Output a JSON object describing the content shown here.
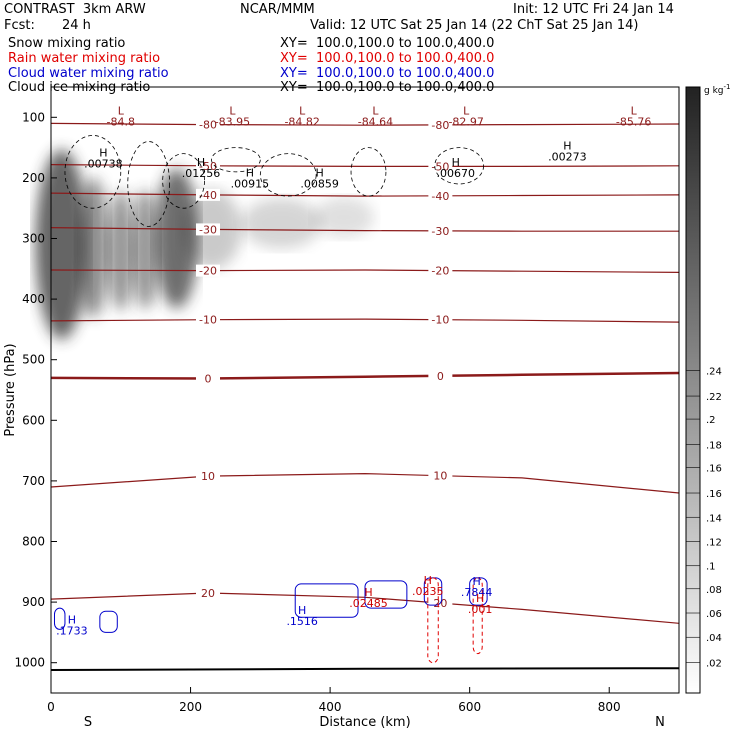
{
  "header": {
    "title_left": "CONTRAST  3km ARW",
    "center": "NCAR/MMM",
    "init": "Init: 12 UTC Fri 24 Jan 14",
    "fcst_label": "Fcst:",
    "fcst_value": "24 h",
    "valid": "Valid: 12 UTC Sat 25 Jan 14 (22 ChT Sat 25 Jan 14)"
  },
  "fields": [
    {
      "name": "Snow mixing ratio",
      "xy": "XY=  100.0,100.0 to 100.0,400.0",
      "color": "#000000"
    },
    {
      "name": "Rain water mixing ratio",
      "xy": "XY=  100.0,100.0 to 100.0,400.0",
      "color": "#e00000"
    },
    {
      "name": "Cloud water mixing ratio",
      "xy": "XY=  100.0,100.0 to 100.0,400.0",
      "color": "#0000cc"
    },
    {
      "name": "Cloud ice mixing ratio",
      "xy": "XY=  100.0,100.0 to 100.0,400.0",
      "color": "#000000"
    }
  ],
  "chart_data": {
    "type": "cross-section",
    "xlabel": "Distance (km)",
    "ylabel": "Pressure (hPa)",
    "xlim": [
      0,
      900
    ],
    "ylim": [
      1050,
      50
    ],
    "x_ticks": [
      0,
      200,
      400,
      600,
      800
    ],
    "y_ticks": [
      100,
      200,
      300,
      400,
      500,
      600,
      700,
      800,
      900,
      1000
    ],
    "x_ends": {
      "left": "S",
      "right": "N"
    },
    "colorbar": {
      "unit": "g kg",
      "unit_exp": "-1",
      "tick_labels": [
        ".02",
        ".04",
        ".06",
        ".08",
        ".1",
        ".12",
        ".14",
        ".16",
        ".16",
        ".18",
        ".2",
        ".22",
        ".24"
      ],
      "tick_pressure": [
        1000,
        958,
        918,
        878,
        840,
        800,
        760,
        720,
        678,
        640,
        598,
        560,
        518
      ]
    },
    "ground_pressure": [
      1012,
      1010,
      1009
    ],
    "temperature_contours": {
      "color": "#8b1a1a",
      "levels": [
        {
          "label": "-80",
          "p": [
            110,
            112,
            113,
            112,
            111
          ]
        },
        {
          "label": "-50",
          "p": [
            178,
            180,
            181,
            181,
            180
          ]
        },
        {
          "label": "-40",
          "p": [
            225,
            228,
            230,
            229,
            228
          ]
        },
        {
          "label": "-30",
          "p": [
            282,
            285,
            287,
            288,
            288
          ]
        },
        {
          "label": "-20",
          "p": [
            352,
            353,
            352,
            354,
            356
          ]
        },
        {
          "label": "-10",
          "p": [
            436,
            434,
            433,
            435,
            438
          ]
        },
        {
          "label": "0",
          "p": [
            530,
            531,
            528,
            525,
            522
          ]
        },
        {
          "label": "10",
          "p": [
            710,
            692,
            688,
            695,
            720
          ]
        },
        {
          "label": "20",
          "p": [
            895,
            885,
            892,
            912,
            935
          ]
        }
      ]
    },
    "extrema_labels": [
      {
        "kind": "L",
        "value": "-84.8",
        "x": 100,
        "p": 95
      },
      {
        "kind": "L",
        "value": "-83.95",
        "x": 260,
        "p": 95
      },
      {
        "kind": "L",
        "value": "-84.82",
        "x": 360,
        "p": 95
      },
      {
        "kind": "L",
        "value": "-84.64",
        "x": 465,
        "p": 95
      },
      {
        "kind": "L",
        "value": "-82.97",
        "x": 595,
        "p": 95
      },
      {
        "kind": "L",
        "value": "-85.76",
        "x": 835,
        "p": 95
      },
      {
        "kind": "H",
        "value": ".00738",
        "x": 75,
        "p": 165
      },
      {
        "kind": "H",
        "value": ".01256",
        "x": 215,
        "p": 180
      },
      {
        "kind": "H",
        "value": ".00915",
        "x": 285,
        "p": 198
      },
      {
        "kind": "H",
        "value": ".00859",
        "x": 385,
        "p": 198
      },
      {
        "kind": "H",
        "value": ".00670",
        "x": 580,
        "p": 180
      },
      {
        "kind": "H",
        "value": ".00273",
        "x": 740,
        "p": 153
      }
    ],
    "cloud_water_labels": [
      {
        "kind": "H",
        "value": ".1733",
        "x": 30,
        "p": 935
      },
      {
        "kind": "H",
        "value": ".1516",
        "x": 360,
        "p": 920
      },
      {
        "kind": "H",
        "value": ".7844",
        "x": 610,
        "p": 872
      }
    ],
    "rain_labels": [
      {
        "kind": "H",
        "value": ".02485",
        "x": 455,
        "p": 890
      },
      {
        "kind": "H",
        "value": ".0235",
        "x": 540,
        "p": 870
      },
      {
        "kind": "H",
        "value": ".001",
        "x": 615,
        "p": 900
      }
    ]
  }
}
